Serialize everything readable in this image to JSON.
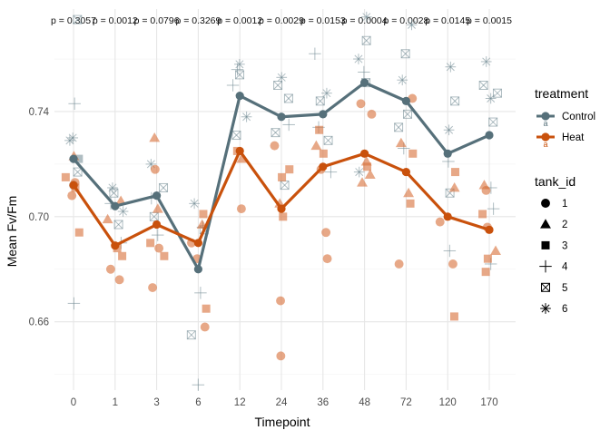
{
  "chart_data": {
    "type": "line",
    "xlabel": "Timepoint",
    "ylabel": "Mean Fv/Fm",
    "categories": [
      "0",
      "1",
      "3",
      "6",
      "12",
      "24",
      "36",
      "48",
      "72",
      "120",
      "170"
    ],
    "y_ticks": [
      0.66,
      0.7,
      0.74
    ],
    "y_tick_labels": [
      "0.66",
      "0.70",
      "0.74"
    ],
    "ylim": [
      0.634,
      0.779
    ],
    "grid": true,
    "p_values": [
      "p = 0.3057",
      "p = 0.0012",
      "p = 0.0796",
      "p = 0.3269",
      "p = 0.0012",
      "p = 0.0029",
      "p = 0.0153",
      "p = 0.0004",
      "p = 0.0028",
      "p = 0.0145",
      "p = 0.0015"
    ],
    "series": [
      {
        "name": "Control",
        "color": "#56707A",
        "values": [
          0.722,
          0.704,
          0.708,
          0.68,
          0.746,
          0.738,
          0.739,
          0.751,
          0.744,
          0.724,
          0.731
        ]
      },
      {
        "name": "Heat",
        "color": "#C9510C",
        "values": [
          0.712,
          0.689,
          0.697,
          0.69,
          0.725,
          0.703,
          0.719,
          0.724,
          0.717,
          0.7,
          0.695
        ]
      }
    ],
    "raw_points": [
      {
        "t": 0,
        "g": "Control",
        "tank": 5,
        "y": 0.775
      },
      {
        "t": 0,
        "g": "Control",
        "tank": 4,
        "y": 0.743
      },
      {
        "t": 0,
        "g": "Control",
        "tank": 6,
        "y": 0.73
      },
      {
        "t": 0,
        "g": "Control",
        "tank": 6,
        "y": 0.729
      },
      {
        "t": 0,
        "g": "Control",
        "tank": 3,
        "y": 0.722
      },
      {
        "t": 0,
        "g": "Control",
        "tank": 5,
        "y": 0.717
      },
      {
        "t": 0,
        "g": "Control",
        "tank": 1,
        "y": 0.712
      },
      {
        "t": 0,
        "g": "Control",
        "tank": 4,
        "y": 0.667
      },
      {
        "t": 0,
        "g": "Heat",
        "tank": 2,
        "y": 0.723
      },
      {
        "t": 0,
        "g": "Heat",
        "tank": 3,
        "y": 0.715
      },
      {
        "t": 0,
        "g": "Heat",
        "tank": 1,
        "y": 0.713
      },
      {
        "t": 0,
        "g": "Heat",
        "tank": 3,
        "y": 0.711
      },
      {
        "t": 0,
        "g": "Heat",
        "tank": 1,
        "y": 0.708
      },
      {
        "t": 0,
        "g": "Heat",
        "tank": 3,
        "y": 0.694
      },
      {
        "t": 1,
        "g": "Control",
        "tank": 6,
        "y": 0.711
      },
      {
        "t": 1,
        "g": "Control",
        "tank": 5,
        "y": 0.709
      },
      {
        "t": 1,
        "g": "Control",
        "tank": 4,
        "y": 0.705
      },
      {
        "t": 1,
        "g": "Control",
        "tank": 6,
        "y": 0.702
      },
      {
        "t": 1,
        "g": "Control",
        "tank": 5,
        "y": 0.697
      },
      {
        "t": 1,
        "g": "Control",
        "tank": 4,
        "y": 0.69
      },
      {
        "t": 1,
        "g": "Heat",
        "tank": 2,
        "y": 0.706
      },
      {
        "t": 1,
        "g": "Heat",
        "tank": 2,
        "y": 0.699
      },
      {
        "t": 1,
        "g": "Heat",
        "tank": 3,
        "y": 0.688
      },
      {
        "t": 1,
        "g": "Heat",
        "tank": 3,
        "y": 0.685
      },
      {
        "t": 1,
        "g": "Heat",
        "tank": 1,
        "y": 0.68
      },
      {
        "t": 1,
        "g": "Heat",
        "tank": 1,
        "y": 0.676
      },
      {
        "t": 3,
        "g": "Control",
        "tank": 6,
        "y": 0.72
      },
      {
        "t": 3,
        "g": "Control",
        "tank": 5,
        "y": 0.711
      },
      {
        "t": 3,
        "g": "Control",
        "tank": 4,
        "y": 0.707
      },
      {
        "t": 3,
        "g": "Control",
        "tank": 5,
        "y": 0.7
      },
      {
        "t": 3,
        "g": "Control",
        "tank": 4,
        "y": 0.693
      },
      {
        "t": 3,
        "g": "Heat",
        "tank": 2,
        "y": 0.73
      },
      {
        "t": 3,
        "g": "Heat",
        "tank": 1,
        "y": 0.718
      },
      {
        "t": 3,
        "g": "Heat",
        "tank": 2,
        "y": 0.703
      },
      {
        "t": 3,
        "g": "Heat",
        "tank": 3,
        "y": 0.69
      },
      {
        "t": 3,
        "g": "Heat",
        "tank": 1,
        "y": 0.688
      },
      {
        "t": 3,
        "g": "Heat",
        "tank": 3,
        "y": 0.685
      },
      {
        "t": 3,
        "g": "Heat",
        "tank": 1,
        "y": 0.673
      },
      {
        "t": 6,
        "g": "Control",
        "tank": 6,
        "y": 0.705
      },
      {
        "t": 6,
        "g": "Control",
        "tank": 4,
        "y": 0.696
      },
      {
        "t": 6,
        "g": "Control",
        "tank": 5,
        "y": 0.695
      },
      {
        "t": 6,
        "g": "Control",
        "tank": 4,
        "y": 0.671
      },
      {
        "t": 6,
        "g": "Control",
        "tank": 5,
        "y": 0.655
      },
      {
        "t": 6,
        "g": "Control",
        "tank": 4,
        "y": 0.636
      },
      {
        "t": 6,
        "g": "Heat",
        "tank": 3,
        "y": 0.701
      },
      {
        "t": 6,
        "g": "Heat",
        "tank": 2,
        "y": 0.697
      },
      {
        "t": 6,
        "g": "Heat",
        "tank": 1,
        "y": 0.69
      },
      {
        "t": 6,
        "g": "Heat",
        "tank": 1,
        "y": 0.684
      },
      {
        "t": 6,
        "g": "Heat",
        "tank": 3,
        "y": 0.665
      },
      {
        "t": 6,
        "g": "Heat",
        "tank": 1,
        "y": 0.658
      },
      {
        "t": 12,
        "g": "Control",
        "tank": 6,
        "y": 0.758
      },
      {
        "t": 12,
        "g": "Control",
        "tank": 4,
        "y": 0.756
      },
      {
        "t": 12,
        "g": "Control",
        "tank": 5,
        "y": 0.754
      },
      {
        "t": 12,
        "g": "Control",
        "tank": 4,
        "y": 0.75
      },
      {
        "t": 12,
        "g": "Control",
        "tank": 6,
        "y": 0.738
      },
      {
        "t": 12,
        "g": "Control",
        "tank": 5,
        "y": 0.731
      },
      {
        "t": 12,
        "g": "Heat",
        "tank": 3,
        "y": 0.725
      },
      {
        "t": 12,
        "g": "Heat",
        "tank": 2,
        "y": 0.722
      },
      {
        "t": 12,
        "g": "Heat",
        "tank": 1,
        "y": 0.703
      },
      {
        "t": 24,
        "g": "Control",
        "tank": 6,
        "y": 0.753
      },
      {
        "t": 24,
        "g": "Control",
        "tank": 5,
        "y": 0.75
      },
      {
        "t": 24,
        "g": "Control",
        "tank": 5,
        "y": 0.745
      },
      {
        "t": 24,
        "g": "Control",
        "tank": 4,
        "y": 0.735
      },
      {
        "t": 24,
        "g": "Control",
        "tank": 5,
        "y": 0.732
      },
      {
        "t": 24,
        "g": "Control",
        "tank": 5,
        "y": 0.712
      },
      {
        "t": 24,
        "g": "Heat",
        "tank": 1,
        "y": 0.727
      },
      {
        "t": 24,
        "g": "Heat",
        "tank": 3,
        "y": 0.718
      },
      {
        "t": 24,
        "g": "Heat",
        "tank": 3,
        "y": 0.715
      },
      {
        "t": 24,
        "g": "Heat",
        "tank": 2,
        "y": 0.705
      },
      {
        "t": 24,
        "g": "Heat",
        "tank": 3,
        "y": 0.7
      },
      {
        "t": 24,
        "g": "Heat",
        "tank": 1,
        "y": 0.668
      },
      {
        "t": 24,
        "g": "Heat",
        "tank": 1,
        "y": 0.647
      },
      {
        "t": 36,
        "g": "Control",
        "tank": 4,
        "y": 0.762
      },
      {
        "t": 36,
        "g": "Control",
        "tank": 6,
        "y": 0.747
      },
      {
        "t": 36,
        "g": "Control",
        "tank": 5,
        "y": 0.744
      },
      {
        "t": 36,
        "g": "Control",
        "tank": 4,
        "y": 0.734
      },
      {
        "t": 36,
        "g": "Control",
        "tank": 5,
        "y": 0.729
      },
      {
        "t": 36,
        "g": "Control",
        "tank": 4,
        "y": 0.717
      },
      {
        "t": 36,
        "g": "Heat",
        "tank": 3,
        "y": 0.733
      },
      {
        "t": 36,
        "g": "Heat",
        "tank": 2,
        "y": 0.727
      },
      {
        "t": 36,
        "g": "Heat",
        "tank": 3,
        "y": 0.724
      },
      {
        "t": 36,
        "g": "Heat",
        "tank": 1,
        "y": 0.718
      },
      {
        "t": 36,
        "g": "Heat",
        "tank": 1,
        "y": 0.694
      },
      {
        "t": 36,
        "g": "Heat",
        "tank": 1,
        "y": 0.684
      },
      {
        "t": 48,
        "g": "Control",
        "tank": 6,
        "y": 0.776
      },
      {
        "t": 48,
        "g": "Control",
        "tank": 5,
        "y": 0.767
      },
      {
        "t": 48,
        "g": "Control",
        "tank": 6,
        "y": 0.76
      },
      {
        "t": 48,
        "g": "Control",
        "tank": 4,
        "y": 0.755
      },
      {
        "t": 48,
        "g": "Control",
        "tank": 5,
        "y": 0.751
      },
      {
        "t": 48,
        "g": "Control",
        "tank": 6,
        "y": 0.717
      },
      {
        "t": 48,
        "g": "Heat",
        "tank": 1,
        "y": 0.743
      },
      {
        "t": 48,
        "g": "Heat",
        "tank": 1,
        "y": 0.739
      },
      {
        "t": 48,
        "g": "Heat",
        "tank": 2,
        "y": 0.721
      },
      {
        "t": 48,
        "g": "Heat",
        "tank": 3,
        "y": 0.719
      },
      {
        "t": 48,
        "g": "Heat",
        "tank": 2,
        "y": 0.716
      },
      {
        "t": 48,
        "g": "Heat",
        "tank": 2,
        "y": 0.713
      },
      {
        "t": 72,
        "g": "Control",
        "tank": 6,
        "y": 0.773
      },
      {
        "t": 72,
        "g": "Control",
        "tank": 5,
        "y": 0.762
      },
      {
        "t": 72,
        "g": "Control",
        "tank": 6,
        "y": 0.752
      },
      {
        "t": 72,
        "g": "Control",
        "tank": 5,
        "y": 0.739
      },
      {
        "t": 72,
        "g": "Control",
        "tank": 5,
        "y": 0.734
      },
      {
        "t": 72,
        "g": "Control",
        "tank": 4,
        "y": 0.726
      },
      {
        "t": 72,
        "g": "Heat",
        "tank": 1,
        "y": 0.745
      },
      {
        "t": 72,
        "g": "Heat",
        "tank": 2,
        "y": 0.728
      },
      {
        "t": 72,
        "g": "Heat",
        "tank": 3,
        "y": 0.724
      },
      {
        "t": 72,
        "g": "Heat",
        "tank": 2,
        "y": 0.709
      },
      {
        "t": 72,
        "g": "Heat",
        "tank": 3,
        "y": 0.705
      },
      {
        "t": 72,
        "g": "Heat",
        "tank": 1,
        "y": 0.682
      },
      {
        "t": 120,
        "g": "Control",
        "tank": 6,
        "y": 0.757
      },
      {
        "t": 120,
        "g": "Control",
        "tank": 5,
        "y": 0.744
      },
      {
        "t": 120,
        "g": "Control",
        "tank": 6,
        "y": 0.733
      },
      {
        "t": 120,
        "g": "Control",
        "tank": 4,
        "y": 0.721
      },
      {
        "t": 120,
        "g": "Control",
        "tank": 5,
        "y": 0.709
      },
      {
        "t": 120,
        "g": "Control",
        "tank": 4,
        "y": 0.687
      },
      {
        "t": 120,
        "g": "Heat",
        "tank": 3,
        "y": 0.717
      },
      {
        "t": 120,
        "g": "Heat",
        "tank": 2,
        "y": 0.711
      },
      {
        "t": 120,
        "g": "Heat",
        "tank": 1,
        "y": 0.698
      },
      {
        "t": 120,
        "g": "Heat",
        "tank": 1,
        "y": 0.682
      },
      {
        "t": 120,
        "g": "Heat",
        "tank": 3,
        "y": 0.662
      },
      {
        "t": 170,
        "g": "Control",
        "tank": 6,
        "y": 0.759
      },
      {
        "t": 170,
        "g": "Control",
        "tank": 5,
        "y": 0.75
      },
      {
        "t": 170,
        "g": "Control",
        "tank": 5,
        "y": 0.747
      },
      {
        "t": 170,
        "g": "Control",
        "tank": 6,
        "y": 0.745
      },
      {
        "t": 170,
        "g": "Control",
        "tank": 5,
        "y": 0.736
      },
      {
        "t": 170,
        "g": "Control",
        "tank": 4,
        "y": 0.711
      },
      {
        "t": 170,
        "g": "Control",
        "tank": 4,
        "y": 0.703
      },
      {
        "t": 170,
        "g": "Control",
        "tank": 4,
        "y": 0.682
      },
      {
        "t": 170,
        "g": "Heat",
        "tank": 1,
        "y": 0.71
      },
      {
        "t": 170,
        "g": "Heat",
        "tank": 2,
        "y": 0.712
      },
      {
        "t": 170,
        "g": "Heat",
        "tank": 3,
        "y": 0.701
      },
      {
        "t": 170,
        "g": "Heat",
        "tank": 1,
        "y": 0.696
      },
      {
        "t": 170,
        "g": "Heat",
        "tank": 2,
        "y": 0.687
      },
      {
        "t": 170,
        "g": "Heat",
        "tank": 3,
        "y": 0.684
      },
      {
        "t": 170,
        "g": "Heat",
        "tank": 3,
        "y": 0.679
      }
    ]
  },
  "legend": {
    "treatment_title": "treatment",
    "treatment_items": [
      {
        "label": "Control",
        "glyph": "a",
        "color": "#56707A"
      },
      {
        "label": "Heat",
        "glyph": "a",
        "color": "#C9510C"
      }
    ],
    "tank_title": "tank_id",
    "tank_items": [
      {
        "label": "1",
        "shape": "circle"
      },
      {
        "label": "2",
        "shape": "triangle"
      },
      {
        "label": "3",
        "shape": "square"
      },
      {
        "label": "4",
        "shape": "plus"
      },
      {
        "label": "5",
        "shape": "boxed-x"
      },
      {
        "label": "6",
        "shape": "asterisk"
      }
    ]
  }
}
